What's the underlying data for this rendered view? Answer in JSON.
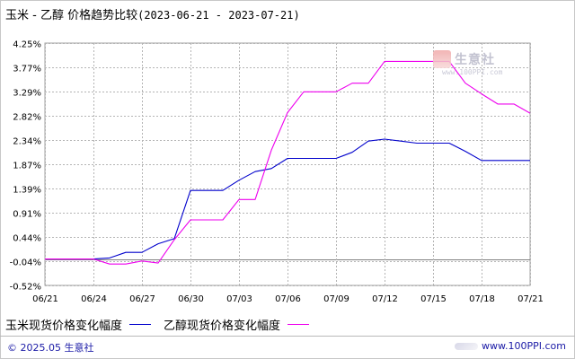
{
  "title": {
    "main": "玉米 - 乙醇 价格趋势比较",
    "range": "(2023-06-21 - 2023-07-21)"
  },
  "watermark": {
    "name": "生意社",
    "url": "www.100PPI.com"
  },
  "footer": {
    "copyright": "© 2025.05 生意社",
    "site": "www.100PPI.com"
  },
  "colors": {
    "corn": "#0000cc",
    "ethanol": "#ee00ee",
    "grid": "#b4b4b4",
    "zero_line": "#808080"
  },
  "chart_data": {
    "type": "line",
    "xlabel": "",
    "ylabel": "",
    "ylim": [
      -0.52,
      4.25
    ],
    "y_ticks": [
      "4.25%",
      "3.77%",
      "3.29%",
      "2.82%",
      "2.34%",
      "1.87%",
      "1.39%",
      "0.91%",
      "0.44%",
      "-0.04%",
      "-0.52%"
    ],
    "y_tick_values": [
      4.25,
      3.77,
      3.29,
      2.82,
      2.34,
      1.87,
      1.39,
      0.91,
      0.44,
      -0.04,
      -0.52
    ],
    "x_ticks": [
      "06/21",
      "06/24",
      "06/27",
      "06/30",
      "07/03",
      "07/06",
      "07/09",
      "07/12",
      "07/15",
      "07/18",
      "07/21"
    ],
    "x": [
      "06/21",
      "06/22",
      "06/23",
      "06/24",
      "06/25",
      "06/26",
      "06/27",
      "06/28",
      "06/29",
      "06/30",
      "07/01",
      "07/02",
      "07/03",
      "07/04",
      "07/05",
      "07/06",
      "07/07",
      "07/08",
      "07/09",
      "07/10",
      "07/11",
      "07/12",
      "07/13",
      "07/14",
      "07/15",
      "07/16",
      "07/17",
      "07/18",
      "07/19",
      "07/20",
      "07/21"
    ],
    "legend_position": "bottom",
    "grid": true,
    "series": [
      {
        "name": "玉米现货价格变化幅度",
        "color": "#0000cc",
        "values": [
          0,
          0,
          0,
          0,
          0.02,
          0.13,
          0.13,
          0.3,
          0.4,
          1.35,
          1.35,
          1.35,
          1.55,
          1.72,
          1.78,
          1.98,
          1.98,
          1.98,
          1.98,
          2.1,
          2.32,
          2.36,
          2.32,
          2.28,
          2.28,
          2.28,
          2.12,
          1.94,
          1.94,
          1.94,
          1.94
        ]
      },
      {
        "name": "乙醇现货价格变化幅度",
        "color": "#ee00ee",
        "values": [
          0,
          0,
          0,
          0,
          -0.1,
          -0.1,
          -0.04,
          -0.08,
          0.38,
          0.77,
          0.77,
          0.77,
          1.17,
          1.17,
          2.14,
          2.88,
          3.29,
          3.29,
          3.29,
          3.46,
          3.46,
          3.89,
          3.89,
          3.89,
          3.89,
          3.89,
          3.46,
          3.25,
          3.05,
          3.05,
          2.87
        ]
      }
    ]
  }
}
